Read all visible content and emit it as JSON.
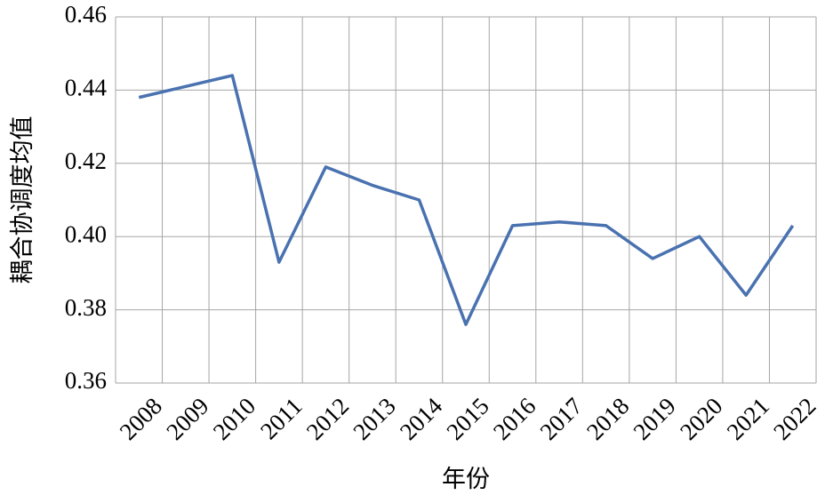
{
  "chart_data": {
    "type": "line",
    "x_label": "年份",
    "y_label": "耦合协调度均值",
    "categories": [
      "2008",
      "2009",
      "2010",
      "2011",
      "2012",
      "2013",
      "2014",
      "2015",
      "2016",
      "2017",
      "2018",
      "2019",
      "2020",
      "2021",
      "2022"
    ],
    "series": [
      {
        "name": "耦合协调度均值",
        "color": "#4a72b0",
        "values": [
          0.438,
          0.441,
          0.444,
          0.393,
          0.419,
          0.414,
          0.41,
          0.376,
          0.403,
          0.404,
          0.403,
          0.394,
          0.4,
          0.384,
          0.403
        ]
      }
    ],
    "ylim": [
      0.36,
      0.46
    ],
    "yticks": [
      0.36,
      0.38,
      {
        "value": 0.4,
        "label": "0.40"
      },
      0.42,
      0.44,
      0.46
    ],
    "grid": true
  }
}
